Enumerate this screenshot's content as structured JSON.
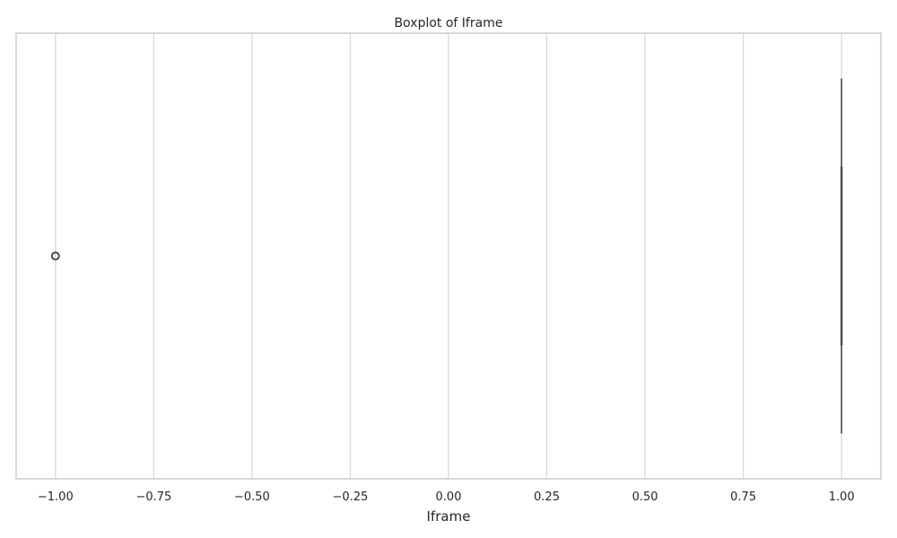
{
  "chart_data": {
    "type": "boxplot",
    "title": "Boxplot of Iframe",
    "xlabel": "Iframe",
    "ylabel": "",
    "orientation": "horizontal",
    "xlim": [
      -1.1,
      1.1
    ],
    "xticks": [
      -1.0,
      -0.75,
      -0.5,
      -0.25,
      0.0,
      0.25,
      0.5,
      0.75,
      1.0
    ],
    "xtick_labels": [
      "−1.00",
      "−0.75",
      "−0.50",
      "−0.25",
      "0.00",
      "0.25",
      "0.50",
      "0.75",
      "1.00"
    ],
    "grid": true,
    "box": {
      "whisker_low": 1.0,
      "q1": 1.0,
      "median": 1.0,
      "q3": 1.0,
      "whisker_high": 1.0
    },
    "outliers": [
      -1.0
    ],
    "colors": {
      "grid": "#d9d9d9",
      "frame": "#cccccc",
      "box_line": "#4d4d4d",
      "text": "#262626"
    }
  }
}
